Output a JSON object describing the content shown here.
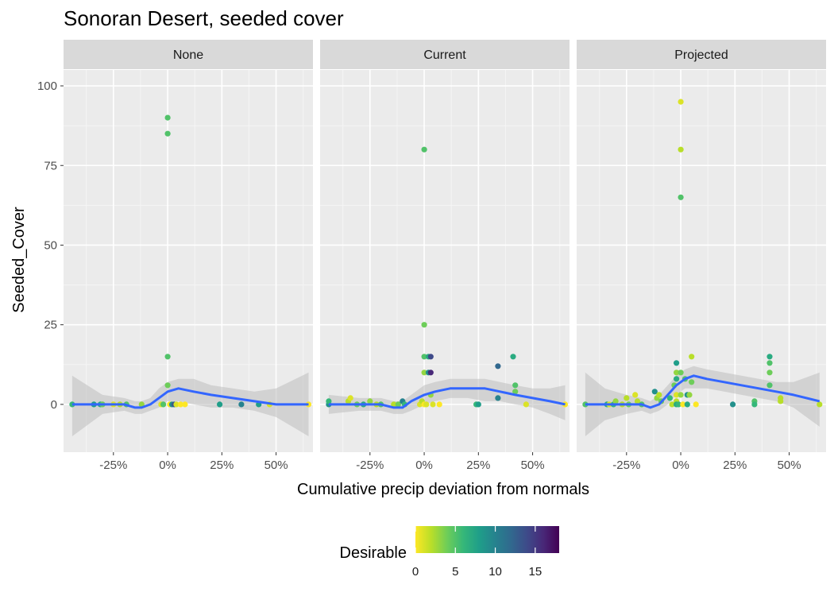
{
  "chart_data": {
    "type": "scatter",
    "title": "Sonoran Desert, seeded cover",
    "xlabel": "Cumulative precip deviation from normals",
    "ylabel": "Seeded_Cover",
    "xlim": [
      -0.48,
      0.67
    ],
    "ylim": [
      -15,
      105
    ],
    "x_ticks": [
      -0.25,
      0,
      0.25,
      0.5
    ],
    "x_tick_labels": [
      "-25%",
      "0%",
      "25%",
      "50%"
    ],
    "y_ticks": [
      0,
      25,
      50,
      75,
      100
    ],
    "y_tick_labels": [
      "0",
      "25",
      "50",
      "75",
      "100"
    ],
    "legend": {
      "title": "Desirable",
      "ticks": [
        0,
        5,
        10,
        15
      ],
      "tick_labels": [
        "0",
        "5",
        "10",
        "15"
      ],
      "range": [
        0,
        18
      ],
      "colors": [
        "#FDE725",
        "#B8DE29",
        "#6DCD59",
        "#35B779",
        "#1F9E89",
        "#26828E",
        "#31688E",
        "#3E4A89",
        "#482878",
        "#440154"
      ]
    },
    "smooth_color": "#3366FF",
    "ribbon_color": "#BEBEBE",
    "panels": [
      {
        "label": "None",
        "points": [
          {
            "x": -0.44,
            "y": 0,
            "c": 6
          },
          {
            "x": -0.34,
            "y": 0,
            "c": 8
          },
          {
            "x": -0.31,
            "y": 0,
            "c": 7
          },
          {
            "x": -0.3,
            "y": 0,
            "c": 4
          },
          {
            "x": -0.25,
            "y": 0,
            "c": 1
          },
          {
            "x": -0.22,
            "y": 0,
            "c": 2
          },
          {
            "x": -0.19,
            "y": 0,
            "c": 5
          },
          {
            "x": -0.12,
            "y": 0,
            "c": 3
          },
          {
            "x": -0.03,
            "y": 0,
            "c": 1
          },
          {
            "x": -0.02,
            "y": 0,
            "c": 5
          },
          {
            "x": 0,
            "y": 90,
            "c": 5
          },
          {
            "x": 0,
            "y": 85,
            "c": 5
          },
          {
            "x": 0,
            "y": 15,
            "c": 5
          },
          {
            "x": 0,
            "y": 6,
            "c": 4
          },
          {
            "x": 0.01,
            "y": 0,
            "c": 0
          },
          {
            "x": 0.02,
            "y": 0,
            "c": 9
          },
          {
            "x": 0.03,
            "y": 0,
            "c": 13
          },
          {
            "x": 0.04,
            "y": 0,
            "c": 1
          },
          {
            "x": 0.06,
            "y": 0,
            "c": 0
          },
          {
            "x": 0.08,
            "y": 0,
            "c": 0
          },
          {
            "x": 0.24,
            "y": 0,
            "c": 8
          },
          {
            "x": 0.34,
            "y": 0,
            "c": 10
          },
          {
            "x": 0.42,
            "y": 0,
            "c": 8
          },
          {
            "x": 0.47,
            "y": 0,
            "c": 1
          },
          {
            "x": 0.65,
            "y": 0,
            "c": 0
          }
        ],
        "smooth": [
          {
            "x": -0.44,
            "y": 0,
            "lo": -10,
            "hi": 9
          },
          {
            "x": -0.3,
            "y": 0,
            "lo": -3,
            "hi": 3
          },
          {
            "x": -0.2,
            "y": 0,
            "lo": -2,
            "hi": 2
          },
          {
            "x": -0.15,
            "y": -1,
            "lo": -3,
            "hi": 1
          },
          {
            "x": -0.12,
            "y": -1,
            "lo": -3,
            "hi": 1
          },
          {
            "x": -0.08,
            "y": 0,
            "lo": -2,
            "hi": 2
          },
          {
            "x": -0.04,
            "y": 2,
            "lo": -1,
            "hi": 5
          },
          {
            "x": 0,
            "y": 4,
            "lo": 1,
            "hi": 7
          },
          {
            "x": 0.05,
            "y": 5,
            "lo": 1,
            "hi": 8
          },
          {
            "x": 0.12,
            "y": 4,
            "lo": 0,
            "hi": 8
          },
          {
            "x": 0.2,
            "y": 3,
            "lo": -1,
            "hi": 6
          },
          {
            "x": 0.3,
            "y": 2,
            "lo": -1,
            "hi": 5
          },
          {
            "x": 0.4,
            "y": 1,
            "lo": -2,
            "hi": 4
          },
          {
            "x": 0.5,
            "y": 0,
            "lo": -4,
            "hi": 5
          },
          {
            "x": 0.65,
            "y": 0,
            "lo": -10,
            "hi": 10
          }
        ]
      },
      {
        "label": "Current",
        "points": [
          {
            "x": -0.44,
            "y": 0,
            "c": 9
          },
          {
            "x": -0.44,
            "y": 1,
            "c": 6
          },
          {
            "x": -0.35,
            "y": 1,
            "c": 2
          },
          {
            "x": -0.34,
            "y": 2,
            "c": 1
          },
          {
            "x": -0.31,
            "y": 0,
            "c": 4
          },
          {
            "x": -0.28,
            "y": 0,
            "c": 7
          },
          {
            "x": -0.25,
            "y": 1,
            "c": 3
          },
          {
            "x": -0.22,
            "y": 0,
            "c": 2
          },
          {
            "x": -0.2,
            "y": 0,
            "c": 5
          },
          {
            "x": -0.14,
            "y": 0,
            "c": 2
          },
          {
            "x": -0.12,
            "y": 0,
            "c": 4
          },
          {
            "x": -0.1,
            "y": 1,
            "c": 10
          },
          {
            "x": -0.09,
            "y": 0,
            "c": 6
          },
          {
            "x": -0.02,
            "y": 0,
            "c": 1
          },
          {
            "x": -0.01,
            "y": 1,
            "c": 2
          },
          {
            "x": 0,
            "y": 80,
            "c": 5
          },
          {
            "x": 0,
            "y": 25,
            "c": 4
          },
          {
            "x": 0,
            "y": 15,
            "c": 5
          },
          {
            "x": 0,
            "y": 10,
            "c": 3
          },
          {
            "x": 0,
            "y": 0,
            "c": 0
          },
          {
            "x": 0.01,
            "y": 0,
            "c": 1
          },
          {
            "x": 0.02,
            "y": 15,
            "c": 7
          },
          {
            "x": 0.03,
            "y": 15,
            "c": 14
          },
          {
            "x": 0.02,
            "y": 10,
            "c": 9
          },
          {
            "x": 0.03,
            "y": 10,
            "c": 16
          },
          {
            "x": 0.03,
            "y": 3,
            "c": 3
          },
          {
            "x": 0.04,
            "y": 0,
            "c": 1
          },
          {
            "x": 0.07,
            "y": 0,
            "c": 0
          },
          {
            "x": 0.24,
            "y": 0,
            "c": 6
          },
          {
            "x": 0.25,
            "y": 0,
            "c": 8
          },
          {
            "x": 0.34,
            "y": 12,
            "c": 12
          },
          {
            "x": 0.34,
            "y": 2,
            "c": 10
          },
          {
            "x": 0.41,
            "y": 15,
            "c": 7
          },
          {
            "x": 0.42,
            "y": 6,
            "c": 5
          },
          {
            "x": 0.42,
            "y": 4,
            "c": 4
          },
          {
            "x": 0.47,
            "y": 0,
            "c": 1
          },
          {
            "x": 0.65,
            "y": 0,
            "c": 0
          }
        ],
        "smooth": [
          {
            "x": -0.44,
            "y": 0,
            "lo": -3,
            "hi": 3
          },
          {
            "x": -0.3,
            "y": 0,
            "lo": -2,
            "hi": 2
          },
          {
            "x": -0.2,
            "y": 0,
            "lo": -2,
            "hi": 2
          },
          {
            "x": -0.14,
            "y": -1,
            "lo": -3,
            "hi": 1
          },
          {
            "x": -0.1,
            "y": -1,
            "lo": -3,
            "hi": 1
          },
          {
            "x": -0.06,
            "y": 1,
            "lo": -2,
            "hi": 3
          },
          {
            "x": 0,
            "y": 3,
            "lo": 0,
            "hi": 6
          },
          {
            "x": 0.05,
            "y": 4,
            "lo": 1,
            "hi": 7
          },
          {
            "x": 0.12,
            "y": 5,
            "lo": 2,
            "hi": 8
          },
          {
            "x": 0.2,
            "y": 5,
            "lo": 2,
            "hi": 8
          },
          {
            "x": 0.28,
            "y": 5,
            "lo": 1,
            "hi": 8
          },
          {
            "x": 0.35,
            "y": 4,
            "lo": 1,
            "hi": 7
          },
          {
            "x": 0.42,
            "y": 3,
            "lo": 0,
            "hi": 6
          },
          {
            "x": 0.5,
            "y": 2,
            "lo": -1,
            "hi": 5
          },
          {
            "x": 0.58,
            "y": 1,
            "lo": -3,
            "hi": 5
          },
          {
            "x": 0.65,
            "y": 0,
            "lo": -5,
            "hi": 6
          }
        ]
      },
      {
        "label": "Projected",
        "points": [
          {
            "x": -0.44,
            "y": 0,
            "c": 5
          },
          {
            "x": -0.34,
            "y": 0,
            "c": 7
          },
          {
            "x": -0.33,
            "y": 0,
            "c": 1
          },
          {
            "x": -0.31,
            "y": 0,
            "c": 6
          },
          {
            "x": -0.3,
            "y": 1,
            "c": 3
          },
          {
            "x": -0.27,
            "y": 0,
            "c": 2
          },
          {
            "x": -0.25,
            "y": 2,
            "c": 2
          },
          {
            "x": -0.24,
            "y": 0,
            "c": 4
          },
          {
            "x": -0.21,
            "y": 3,
            "c": 1
          },
          {
            "x": -0.2,
            "y": 1,
            "c": 2
          },
          {
            "x": -0.18,
            "y": 0,
            "c": 5
          },
          {
            "x": -0.12,
            "y": 4,
            "c": 9
          },
          {
            "x": -0.11,
            "y": 2,
            "c": 3
          },
          {
            "x": -0.1,
            "y": 3,
            "c": 2
          },
          {
            "x": -0.09,
            "y": 1,
            "c": 4
          },
          {
            "x": -0.05,
            "y": 2,
            "c": 6
          },
          {
            "x": -0.04,
            "y": 0,
            "c": 2
          },
          {
            "x": -0.03,
            "y": 6,
            "c": 4
          },
          {
            "x": -0.02,
            "y": 13,
            "c": 8
          },
          {
            "x": -0.02,
            "y": 10,
            "c": 3
          },
          {
            "x": -0.02,
            "y": 8,
            "c": 7
          },
          {
            "x": -0.02,
            "y": 3,
            "c": 1
          },
          {
            "x": -0.02,
            "y": 1,
            "c": 2
          },
          {
            "x": -0.02,
            "y": 0,
            "c": 7
          },
          {
            "x": -0.01,
            "y": 0,
            "c": 6
          },
          {
            "x": 0,
            "y": 95,
            "c": 1
          },
          {
            "x": 0,
            "y": 80,
            "c": 2
          },
          {
            "x": 0,
            "y": 65,
            "c": 5
          },
          {
            "x": 0,
            "y": 10,
            "c": 4
          },
          {
            "x": 0,
            "y": 3,
            "c": 3
          },
          {
            "x": 0.01,
            "y": 0,
            "c": 0
          },
          {
            "x": 0.02,
            "y": 8,
            "c": 5
          },
          {
            "x": 0.03,
            "y": 3,
            "c": 9
          },
          {
            "x": 0.03,
            "y": 0,
            "c": 7
          },
          {
            "x": 0.04,
            "y": 3,
            "c": 3
          },
          {
            "x": 0.05,
            "y": 15,
            "c": 2
          },
          {
            "x": 0.05,
            "y": 7,
            "c": 4
          },
          {
            "x": 0.07,
            "y": 0,
            "c": 0
          },
          {
            "x": 0.24,
            "y": 0,
            "c": 9
          },
          {
            "x": 0.34,
            "y": 1,
            "c": 5
          },
          {
            "x": 0.34,
            "y": 0,
            "c": 6
          },
          {
            "x": 0.41,
            "y": 15,
            "c": 7
          },
          {
            "x": 0.41,
            "y": 13,
            "c": 5
          },
          {
            "x": 0.41,
            "y": 10,
            "c": 4
          },
          {
            "x": 0.41,
            "y": 6,
            "c": 5
          },
          {
            "x": 0.46,
            "y": 2,
            "c": 2
          },
          {
            "x": 0.46,
            "y": 1,
            "c": 2
          },
          {
            "x": 0.64,
            "y": 0,
            "c": 2
          }
        ],
        "smooth": [
          {
            "x": -0.44,
            "y": 0,
            "lo": -10,
            "hi": 10
          },
          {
            "x": -0.35,
            "y": 0,
            "lo": -5,
            "hi": 5
          },
          {
            "x": -0.25,
            "y": 0,
            "lo": -3,
            "hi": 3
          },
          {
            "x": -0.18,
            "y": 0,
            "lo": -2,
            "hi": 2
          },
          {
            "x": -0.14,
            "y": -1,
            "lo": -3,
            "hi": 1
          },
          {
            "x": -0.1,
            "y": 0,
            "lo": -2,
            "hi": 3
          },
          {
            "x": -0.06,
            "y": 3,
            "lo": 0,
            "hi": 6
          },
          {
            "x": -0.02,
            "y": 6,
            "lo": 3,
            "hi": 9
          },
          {
            "x": 0.02,
            "y": 8,
            "lo": 5,
            "hi": 11
          },
          {
            "x": 0.06,
            "y": 9,
            "lo": 5,
            "hi": 12
          },
          {
            "x": 0.12,
            "y": 8,
            "lo": 5,
            "hi": 11
          },
          {
            "x": 0.2,
            "y": 7,
            "lo": 4,
            "hi": 10
          },
          {
            "x": 0.28,
            "y": 6,
            "lo": 3,
            "hi": 9
          },
          {
            "x": 0.36,
            "y": 5,
            "lo": 2,
            "hi": 8
          },
          {
            "x": 0.44,
            "y": 4,
            "lo": 1,
            "hi": 7
          },
          {
            "x": 0.52,
            "y": 3,
            "lo": -1,
            "hi": 7
          },
          {
            "x": 0.64,
            "y": 1,
            "lo": -7,
            "hi": 10
          }
        ]
      }
    ]
  }
}
